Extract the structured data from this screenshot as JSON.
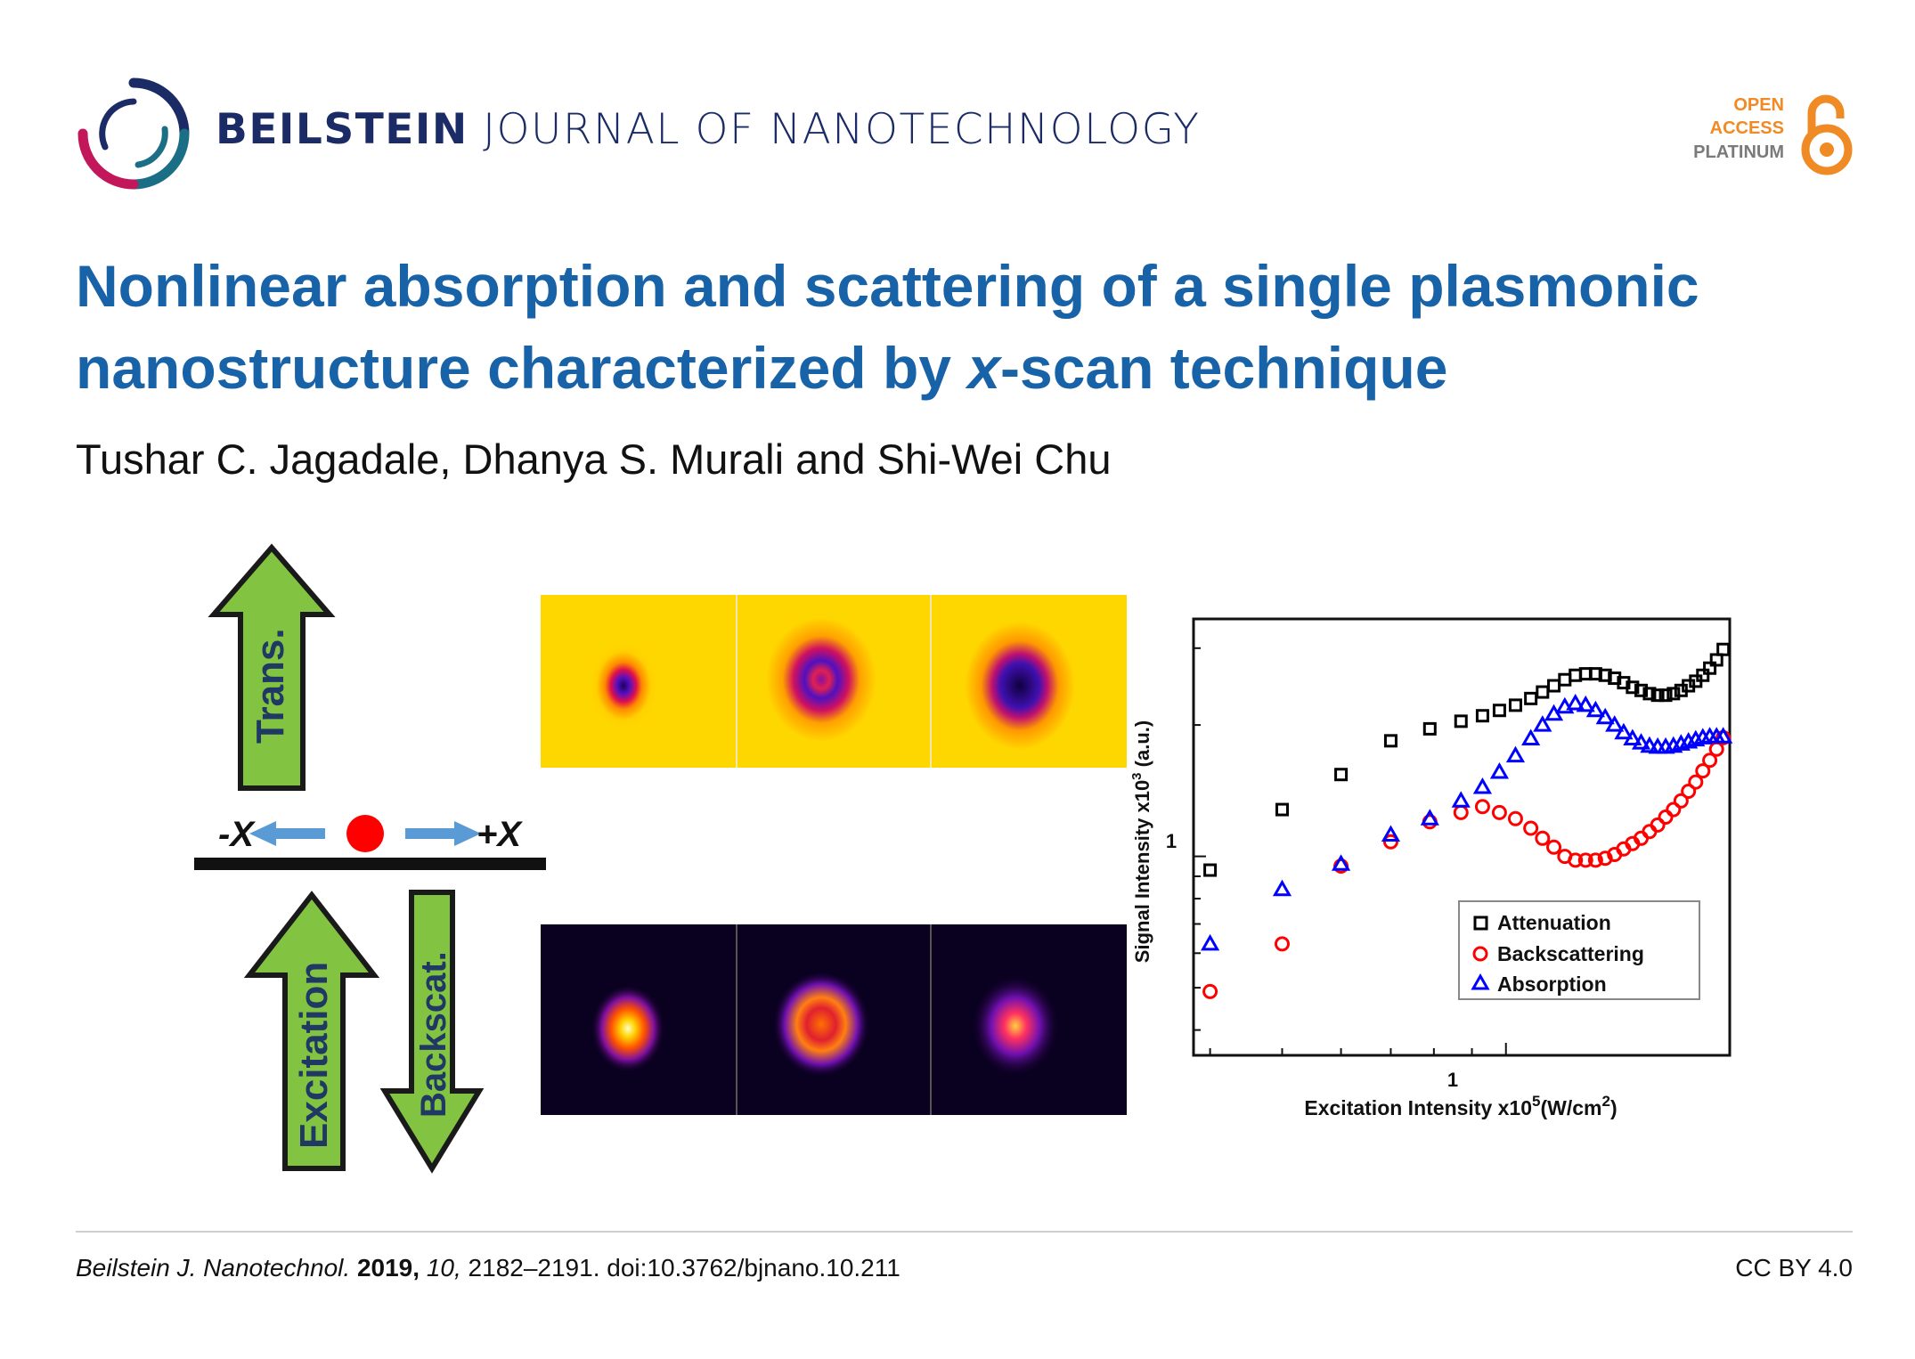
{
  "header": {
    "journal_bold": "BEILSTEIN",
    "journal_rest": " JOURNAL OF NANOTECHNOLOGY",
    "open_access": {
      "line1": "OPEN",
      "line2": "ACCESS",
      "line3": "PLATINUM"
    }
  },
  "article": {
    "title_part1": "Nonlinear absorption and scattering of a single plasmonic nanostructure characterized by ",
    "title_italic": "x",
    "title_part2": "-scan technique",
    "authors": "Tushar C. Jagadale, Dhanya S. Murali and Shi-Wei Chu"
  },
  "figure": {
    "schematic": {
      "trans_label": "Trans.",
      "excitation_label": "Excitation",
      "backscat_label": "Backscat.",
      "minus_x": "-X",
      "plus_x": "+X"
    },
    "colors": {
      "arrow_green": "#82c341",
      "arrow_blue": "#5b9bd5",
      "particle_red": "#ff0000",
      "attenuation": "#000000",
      "backscattering": "#ff0000",
      "absorption": "#0000ff"
    }
  },
  "chart_data": {
    "type": "scatter",
    "xlabel": "Excitation Intensity x10",
    "xlabel_sup": "5",
    "xlabel_units": "(W/cm",
    "xlabel_units_sup": "2",
    "xlabel_close": ")",
    "ylabel": "Signal Intensity x10",
    "ylabel_sup": "3",
    "ylabel_units": " (a.u.)",
    "x_scale": "log",
    "y_scale": "log",
    "xlim": [
      0.38,
      2.0
    ],
    "ylim": [
      0.35,
      3.5
    ],
    "x_tick_label": "1",
    "y_tick_label": "1",
    "legend_position": "bottom-right",
    "series": [
      {
        "name": "Attenuation",
        "marker": "square",
        "x": [
          0.4,
          0.5,
          0.6,
          0.7,
          0.79,
          0.87,
          0.93,
          0.98,
          1.03,
          1.08,
          1.12,
          1.16,
          1.2,
          1.24,
          1.28,
          1.32,
          1.36,
          1.4,
          1.44,
          1.48,
          1.52,
          1.56,
          1.6,
          1.64,
          1.68,
          1.72,
          1.76,
          1.8,
          1.84,
          1.88,
          1.92,
          1.96
        ],
        "y": [
          0.93,
          1.28,
          1.54,
          1.84,
          1.96,
          2.04,
          2.1,
          2.16,
          2.22,
          2.3,
          2.38,
          2.46,
          2.54,
          2.6,
          2.62,
          2.62,
          2.6,
          2.56,
          2.5,
          2.44,
          2.4,
          2.36,
          2.34,
          2.34,
          2.36,
          2.4,
          2.46,
          2.52,
          2.6,
          2.7,
          2.82,
          2.98
        ]
      },
      {
        "name": "Backscattering",
        "marker": "circle",
        "x": [
          0.4,
          0.5,
          0.6,
          0.7,
          0.79,
          0.87,
          0.93,
          0.98,
          1.03,
          1.08,
          1.12,
          1.16,
          1.2,
          1.24,
          1.28,
          1.32,
          1.36,
          1.4,
          1.44,
          1.48,
          1.52,
          1.56,
          1.6,
          1.64,
          1.68,
          1.72,
          1.76,
          1.8,
          1.84,
          1.88,
          1.92,
          1.96
        ],
        "y": [
          0.49,
          0.63,
          0.95,
          1.08,
          1.2,
          1.26,
          1.3,
          1.26,
          1.22,
          1.16,
          1.1,
          1.05,
          1.0,
          0.98,
          0.98,
          0.98,
          0.99,
          1.01,
          1.04,
          1.07,
          1.1,
          1.14,
          1.18,
          1.23,
          1.28,
          1.34,
          1.41,
          1.48,
          1.57,
          1.66,
          1.76,
          1.87
        ]
      },
      {
        "name": "Absorption",
        "marker": "triangle",
        "x": [
          0.4,
          0.5,
          0.6,
          0.7,
          0.79,
          0.87,
          0.93,
          0.98,
          1.03,
          1.08,
          1.12,
          1.16,
          1.2,
          1.24,
          1.28,
          1.32,
          1.36,
          1.4,
          1.44,
          1.48,
          1.52,
          1.56,
          1.6,
          1.64,
          1.68,
          1.72,
          1.76,
          1.8,
          1.84,
          1.88,
          1.92,
          1.96
        ],
        "y": [
          0.63,
          0.84,
          0.96,
          1.12,
          1.22,
          1.34,
          1.44,
          1.56,
          1.7,
          1.86,
          2.0,
          2.12,
          2.2,
          2.24,
          2.22,
          2.16,
          2.08,
          2.0,
          1.92,
          1.86,
          1.82,
          1.79,
          1.78,
          1.78,
          1.79,
          1.81,
          1.83,
          1.85,
          1.87,
          1.88,
          1.88,
          1.88
        ]
      }
    ]
  },
  "footer": {
    "journal_abbrev": "Beilstein J. Nanotechnol.",
    "year": "2019,",
    "volume": "10,",
    "pages_doi": " 2182–2191. doi:10.3762/bjnano.10.211",
    "license": "CC BY 4.0"
  }
}
